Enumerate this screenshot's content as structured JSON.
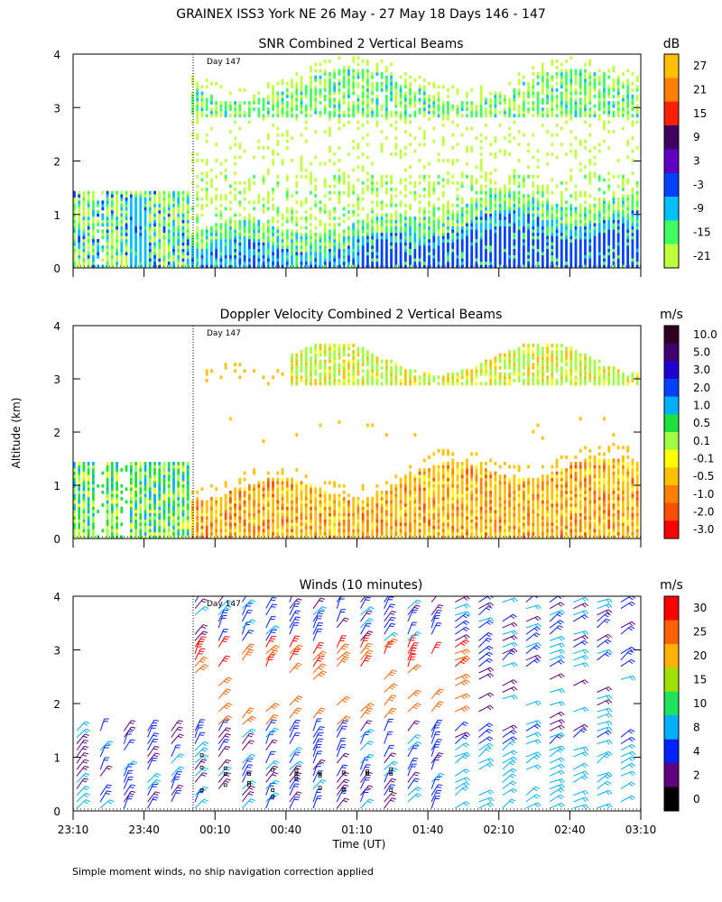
{
  "header": {
    "title": "GRAINEX ISS3 York NE  26 May - 27 May 18 Days 146 - 147",
    "footnote": "Simple moment winds, no ship navigation correction applied",
    "y_axis_label": "Altitude (km)",
    "x_axis_label": "Time (UT)",
    "day_marker": "Day 147"
  },
  "chart_data": [
    {
      "type": "heatmap",
      "title": "SNR Combined 2 Vertical Beams",
      "units": "dB",
      "ylabel": "Altitude (km)",
      "xlabel": "Time (UT)",
      "ylim": [
        0,
        4
      ],
      "yticks": [
        "0",
        "1",
        "2",
        "3",
        "4"
      ],
      "x_range_minutes": [
        0,
        240
      ],
      "day_marker_minutes": 50,
      "colorbar": {
        "labels": [
          "27",
          "21",
          "15",
          "9",
          "3",
          "-3",
          "-9",
          "-15",
          "-21"
        ],
        "colors": [
          "#ffc000",
          "#ff8000",
          "#ff2000",
          "#400060",
          "#6000c0",
          "#0040ff",
          "#00c0ff",
          "#40ff60",
          "#c0ff40"
        ]
      },
      "regions": [
        {
          "t": [
            0,
            50
          ],
          "alt": [
            0.05,
            1.4
          ],
          "level": "-9"
        },
        {
          "t": [
            50,
            240
          ],
          "alt": [
            0.05,
            1.6
          ],
          "level": "-9"
        },
        {
          "t": [
            110,
            240
          ],
          "alt": [
            0.1,
            0.9
          ],
          "level": "-3"
        },
        {
          "t": [
            50,
            240
          ],
          "alt": [
            2.8,
            3.6
          ],
          "level": "-15"
        },
        {
          "t": [
            50,
            240
          ],
          "alt": [
            1.4,
            3.0
          ],
          "level": "-21"
        }
      ]
    },
    {
      "type": "heatmap",
      "title": "Doppler Velocity Combined 2 Vertical Beams",
      "units": "m/s",
      "ylabel": "Altitude (km)",
      "xlabel": "Time (UT)",
      "ylim": [
        0,
        4
      ],
      "yticks": [
        "0",
        "1",
        "2",
        "3",
        "4"
      ],
      "x_range_minutes": [
        0,
        240
      ],
      "day_marker_minutes": 50,
      "colorbar": {
        "labels": [
          "10.0",
          "5.0",
          "3.0",
          "2.0",
          "1.0",
          "0.5",
          "0.1",
          "-0.1",
          "-0.5",
          "-1.0",
          "-2.0",
          "-3.0"
        ],
        "colors": [
          "#300020",
          "#400070",
          "#2000d0",
          "#0040ff",
          "#00b0ff",
          "#20e040",
          "#a0ff40",
          "#ffff00",
          "#ffc000",
          "#ff8000",
          "#ff5000",
          "#ff0000"
        ]
      },
      "regions": [
        {
          "t": [
            0,
            50
          ],
          "alt": [
            0.05,
            1.4
          ],
          "level": "0.1"
        },
        {
          "t": [
            50,
            240
          ],
          "alt": [
            0.1,
            1.5
          ],
          "level": "-0.5"
        },
        {
          "t": [
            60,
            240
          ],
          "alt": [
            2.9,
            3.7
          ],
          "level": "0.1"
        }
      ]
    },
    {
      "type": "wind_barbs",
      "title": "Winds (10 minutes)",
      "units": "m/s",
      "ylabel": "Altitude (km)",
      "xlabel": "Time (UT)",
      "ylim": [
        0,
        4
      ],
      "yticks": [
        "0",
        "1",
        "2",
        "3",
        "4"
      ],
      "xticks": [
        "23:10",
        "23:40",
        "00:10",
        "00:40",
        "01:10",
        "01:40",
        "02:10",
        "02:40",
        "03:10"
      ],
      "x_range_minutes": [
        0,
        240
      ],
      "day_marker_minutes": 50,
      "colorbar": {
        "labels": [
          "30",
          "25",
          "20",
          "15",
          "10",
          "8",
          "4",
          "2",
          "0"
        ],
        "colors": [
          "#ff0000",
          "#ff6000",
          "#ffb000",
          "#a0e000",
          "#20e060",
          "#00b0ff",
          "#0020ff",
          "#600080",
          "#000000"
        ]
      },
      "barb_profiles_minutes": [
        0,
        10,
        20,
        30,
        40,
        50,
        60,
        70,
        80,
        90,
        100,
        110,
        120,
        130,
        140,
        150,
        160,
        170,
        180,
        190,
        200,
        210,
        220,
        230
      ]
    }
  ]
}
